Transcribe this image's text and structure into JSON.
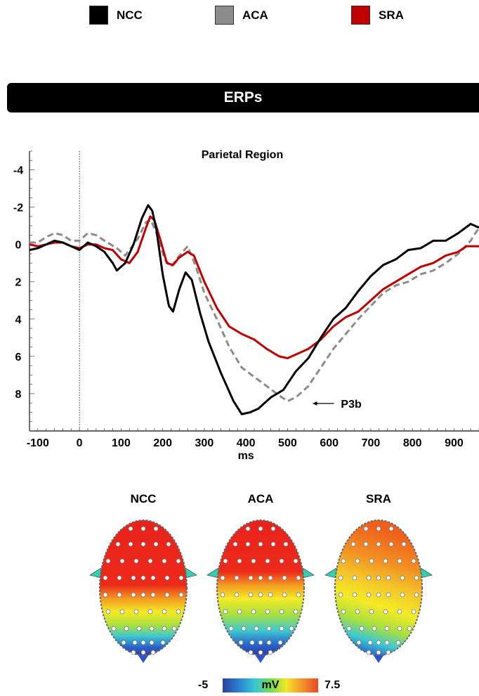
{
  "legend": [
    {
      "label": "NCC",
      "color": "#000000"
    },
    {
      "label": "ACA",
      "color": "#8c8c8c"
    },
    {
      "label": "SRA",
      "color": "#c00000"
    }
  ],
  "banner": {
    "title": "ERPs"
  },
  "chart_data": {
    "type": "line",
    "title": "Parietal Region",
    "xlabel": "ms",
    "ylabel": "",
    "xlim": [
      -120,
      960
    ],
    "ylim": [
      -5,
      10
    ],
    "y_inverted": true,
    "x_ticks": [
      -100,
      0,
      100,
      200,
      300,
      400,
      500,
      600,
      700,
      800,
      900
    ],
    "x_tick_labels": [
      "-100",
      "0",
      "100",
      "200",
      "300",
      "400",
      "500",
      "600",
      "700",
      "800",
      "900"
    ],
    "y_ticks": [
      -4,
      -2,
      0,
      2,
      4,
      6,
      8
    ],
    "y_tick_labels": [
      "-4",
      "-2",
      "0",
      "2",
      "4",
      "6",
      "8"
    ],
    "onset_marker_x": 0,
    "annotation": {
      "text": "P3b",
      "x": 500,
      "y": 8.3
    },
    "series": [
      {
        "name": "NCC",
        "color": "#000000",
        "dash": "solid",
        "points": [
          [
            -120,
            0.3
          ],
          [
            -100,
            0.2
          ],
          [
            -80,
            0
          ],
          [
            -60,
            -0.2
          ],
          [
            -40,
            -0.1
          ],
          [
            -20,
            0.1
          ],
          [
            0,
            0.3
          ],
          [
            20,
            -0.1
          ],
          [
            40,
            0.1
          ],
          [
            60,
            0.4
          ],
          [
            80,
            1.0
          ],
          [
            90,
            1.4
          ],
          [
            110,
            1.0
          ],
          [
            130,
            0
          ],
          [
            150,
            -1.4
          ],
          [
            165,
            -2.1
          ],
          [
            175,
            -1.8
          ],
          [
            185,
            -0.8
          ],
          [
            200,
            1.6
          ],
          [
            215,
            3.3
          ],
          [
            225,
            3.6
          ],
          [
            240,
            2.4
          ],
          [
            255,
            1.5
          ],
          [
            270,
            1.9
          ],
          [
            290,
            3.7
          ],
          [
            310,
            5.2
          ],
          [
            340,
            6.9
          ],
          [
            370,
            8.4
          ],
          [
            390,
            9.1
          ],
          [
            410,
            9.0
          ],
          [
            430,
            8.8
          ],
          [
            460,
            8.2
          ],
          [
            490,
            7.8
          ],
          [
            520,
            6.8
          ],
          [
            550,
            6.1
          ],
          [
            580,
            5.0
          ],
          [
            610,
            4.0
          ],
          [
            640,
            3.4
          ],
          [
            670,
            2.5
          ],
          [
            700,
            1.7
          ],
          [
            730,
            1.1
          ],
          [
            760,
            0.8
          ],
          [
            790,
            0.3
          ],
          [
            820,
            0.2
          ],
          [
            850,
            -0.2
          ],
          [
            880,
            -0.2
          ],
          [
            910,
            -0.6
          ],
          [
            940,
            -1.1
          ],
          [
            960,
            -0.9
          ]
        ]
      },
      {
        "name": "ACA",
        "color": "#8c8c8c",
        "dash": "dashed",
        "points": [
          [
            -120,
            -0.1
          ],
          [
            -100,
            -0.1
          ],
          [
            -80,
            -0.4
          ],
          [
            -60,
            -0.6
          ],
          [
            -40,
            -0.5
          ],
          [
            -20,
            -0.2
          ],
          [
            0,
            -0.2
          ],
          [
            20,
            -0.6
          ],
          [
            40,
            -0.5
          ],
          [
            60,
            -0.2
          ],
          [
            90,
            0.2
          ],
          [
            110,
            0.6
          ],
          [
            140,
            -0.3
          ],
          [
            160,
            -1.2
          ],
          [
            172,
            -1.3
          ],
          [
            185,
            -0.6
          ],
          [
            205,
            0.8
          ],
          [
            220,
            1.2
          ],
          [
            240,
            0.6
          ],
          [
            260,
            0.1
          ],
          [
            280,
            1.2
          ],
          [
            300,
            2.6
          ],
          [
            330,
            4.0
          ],
          [
            360,
            5.5
          ],
          [
            390,
            6.6
          ],
          [
            420,
            7.1
          ],
          [
            450,
            7.6
          ],
          [
            480,
            8.1
          ],
          [
            500,
            8.4
          ],
          [
            520,
            8.2
          ],
          [
            550,
            7.6
          ],
          [
            580,
            6.6
          ],
          [
            610,
            5.6
          ],
          [
            640,
            4.8
          ],
          [
            670,
            4.0
          ],
          [
            700,
            3.3
          ],
          [
            730,
            2.6
          ],
          [
            760,
            2.2
          ],
          [
            790,
            2.0
          ],
          [
            820,
            1.6
          ],
          [
            850,
            1.4
          ],
          [
            880,
            1.0
          ],
          [
            910,
            0.5
          ],
          [
            940,
            -0.2
          ],
          [
            960,
            -0.9
          ]
        ]
      },
      {
        "name": "SRA",
        "color": "#c00000",
        "dash": "solid",
        "points": [
          [
            -120,
            0
          ],
          [
            -100,
            0.1
          ],
          [
            -80,
            0
          ],
          [
            -60,
            -0.1
          ],
          [
            -40,
            -0.1
          ],
          [
            -20,
            0.1
          ],
          [
            0,
            0.2
          ],
          [
            20,
            0
          ],
          [
            40,
            0
          ],
          [
            60,
            0.2
          ],
          [
            80,
            0.3
          ],
          [
            100,
            0.8
          ],
          [
            120,
            1.0
          ],
          [
            140,
            0.4
          ],
          [
            160,
            -0.9
          ],
          [
            170,
            -1.5
          ],
          [
            180,
            -1.3
          ],
          [
            195,
            -0.2
          ],
          [
            210,
            1.0
          ],
          [
            225,
            1.1
          ],
          [
            240,
            0.7
          ],
          [
            260,
            0.4
          ],
          [
            275,
            0.6
          ],
          [
            300,
            2.0
          ],
          [
            330,
            3.4
          ],
          [
            360,
            4.4
          ],
          [
            390,
            4.8
          ],
          [
            420,
            5.1
          ],
          [
            450,
            5.6
          ],
          [
            480,
            6.0
          ],
          [
            500,
            6.1
          ],
          [
            520,
            5.9
          ],
          [
            550,
            5.6
          ],
          [
            580,
            5.1
          ],
          [
            610,
            4.4
          ],
          [
            640,
            3.9
          ],
          [
            670,
            3.6
          ],
          [
            700,
            3.0
          ],
          [
            730,
            2.4
          ],
          [
            760,
            2.0
          ],
          [
            790,
            1.6
          ],
          [
            820,
            1.2
          ],
          [
            850,
            1.0
          ],
          [
            880,
            0.6
          ],
          [
            910,
            0.4
          ],
          [
            930,
            0.1
          ],
          [
            960,
            0.1
          ]
        ]
      }
    ]
  },
  "topomaps": [
    {
      "label": "NCC"
    },
    {
      "label": "ACA"
    },
    {
      "label": "SRA"
    }
  ],
  "colorbar": {
    "min": "-5",
    "unit": "mV",
    "max": "7.5"
  }
}
